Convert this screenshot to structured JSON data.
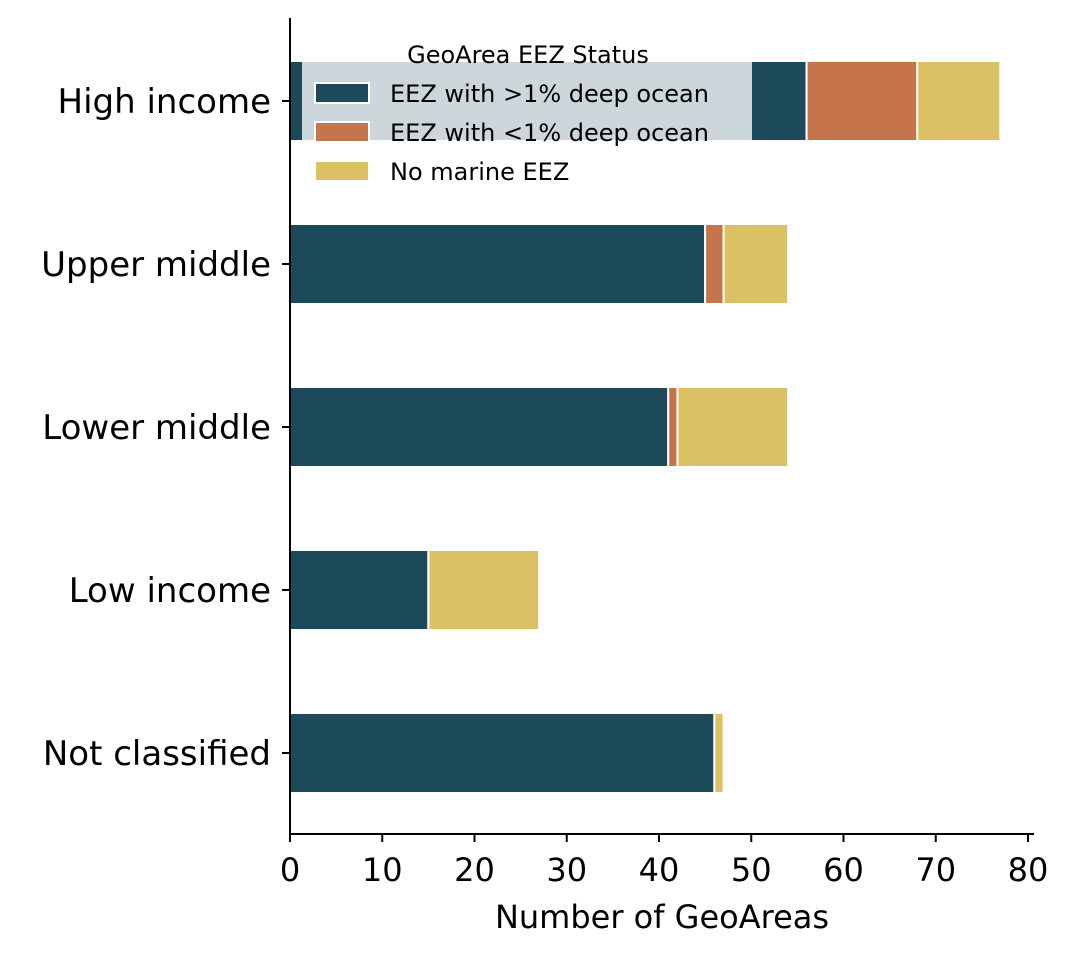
{
  "chart_data": {
    "type": "bar",
    "orientation": "horizontal",
    "stacked": true,
    "categories": [
      "High income",
      "Upper middle",
      "Lower middle",
      "Low income",
      "Not classified"
    ],
    "series": [
      {
        "name": "EEZ with >1% deep ocean",
        "color": "#1d4a5a",
        "values": [
          56,
          45,
          41,
          15,
          46
        ]
      },
      {
        "name": "EEZ with <1% deep ocean",
        "color": "#c5744c",
        "values": [
          12,
          2,
          1,
          0,
          0
        ]
      },
      {
        "name": "No marine EEZ",
        "color": "#dbc064",
        "values": [
          9,
          7,
          12,
          12,
          1
        ]
      }
    ],
    "xlabel": "Number of GeoAreas",
    "ylabel": "",
    "xlim": [
      0,
      80
    ],
    "xticks": [
      0,
      10,
      20,
      30,
      40,
      50,
      60,
      70,
      80
    ],
    "grid": false,
    "legend": {
      "title": "GeoArea EEZ Status",
      "placement": "top"
    }
  }
}
